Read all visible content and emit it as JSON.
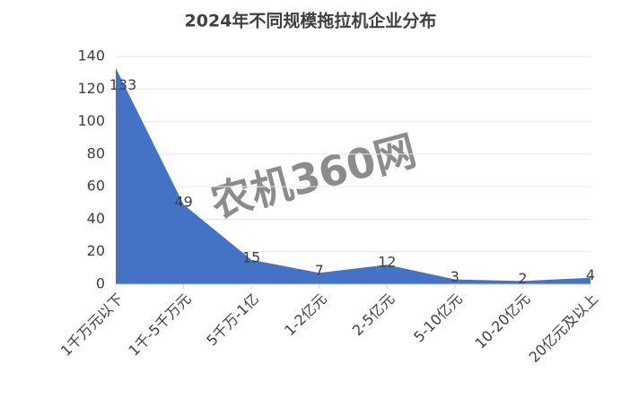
{
  "chart_data": {
    "type": "area",
    "title": "2024年不同规模拖拉机企业分布",
    "watermark": "农机360网",
    "categories": [
      "1千万元以下",
      "1千-5千万元",
      "5千万-1亿",
      "1-2亿元",
      "2-5亿元",
      "5-10亿元",
      "10-20亿元",
      "20亿元及以上"
    ],
    "values": [
      133,
      49,
      15,
      7,
      12,
      3,
      2,
      4
    ],
    "color": "#4472c4",
    "ylim": [
      0,
      140
    ],
    "yticks": [
      0,
      20,
      40,
      60,
      80,
      100,
      120,
      140
    ],
    "grid": true
  }
}
